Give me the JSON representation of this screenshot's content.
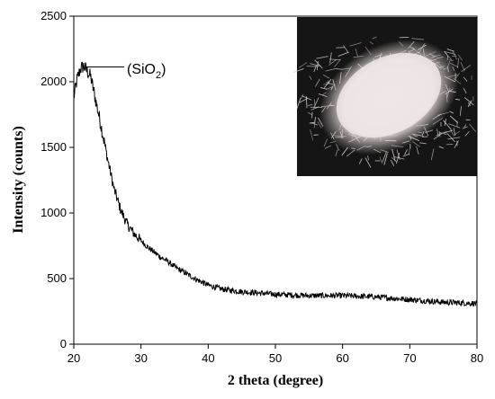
{
  "chart_data": {
    "type": "line",
    "xlabel": "2 theta (degree)",
    "ylabel": "Intensity (counts)",
    "xlim": [
      20,
      80
    ],
    "ylim": [
      0,
      2500
    ],
    "xticks": [
      "20",
      "30",
      "40",
      "50",
      "60",
      "70",
      "80"
    ],
    "yticks": [
      "0",
      "500",
      "1000",
      "1500",
      "2000",
      "2500"
    ],
    "grid": false,
    "series": [
      {
        "color": "#000000",
        "x": [
          20,
          20.5,
          21,
          21.5,
          22,
          22.5,
          23,
          24,
          25,
          26,
          27,
          28,
          29,
          30,
          31,
          32,
          33,
          34,
          35,
          36,
          38,
          40,
          42,
          45,
          50,
          55,
          60,
          65,
          70,
          75,
          80
        ],
        "y": [
          1880,
          2020,
          2100,
          2120,
          2080,
          2040,
          1920,
          1680,
          1420,
          1180,
          1020,
          910,
          840,
          790,
          740,
          700,
          660,
          630,
          590,
          560,
          500,
          450,
          420,
          400,
          380,
          370,
          370,
          360,
          340,
          320,
          310
        ]
      }
    ],
    "annotation": {
      "text_prefix": "(SiO",
      "subscript": "2",
      "text_suffix": ")",
      "x": 21.8,
      "y": 2120
    }
  },
  "inset": {
    "icon": "white-powder-photo",
    "background": "#151515",
    "powder": "#e6dede"
  }
}
